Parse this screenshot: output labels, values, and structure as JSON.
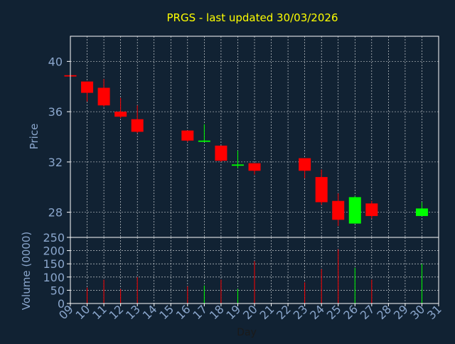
{
  "chart_data": [
    {
      "type": "candlestick",
      "title": "PRGS - last updated 30/03/2026",
      "ylabel": "Price",
      "ylim": [
        26.0,
        42.0
      ],
      "yticks": [
        28,
        32,
        36,
        40
      ],
      "grid": true,
      "x_ticks": [
        "09",
        "10",
        "11",
        "12",
        "13",
        "14",
        "15",
        "16",
        "17",
        "18",
        "19",
        "20",
        "21",
        "22",
        "23",
        "24",
        "25",
        "26",
        "27",
        "28",
        "29",
        "30",
        "31"
      ],
      "candles": [
        {
          "day": 9,
          "open": 38.9,
          "high": 38.9,
          "low": 38.8,
          "close": 38.8
        },
        {
          "day": 10,
          "open": 38.4,
          "high": 38.4,
          "low": 36.8,
          "close": 37.5
        },
        {
          "day": 11,
          "open": 37.9,
          "high": 38.6,
          "low": 36.4,
          "close": 36.5
        },
        {
          "day": 12,
          "open": 36.0,
          "high": 37.1,
          "low": 35.5,
          "close": 35.6
        },
        {
          "day": 13,
          "open": 35.4,
          "high": 36.5,
          "low": 34.3,
          "close": 34.4
        },
        {
          "day": 16,
          "open": 34.5,
          "high": 34.5,
          "low": 33.6,
          "close": 33.7
        },
        {
          "day": 17,
          "open": 33.6,
          "high": 35.0,
          "low": 33.6,
          "close": 33.7
        },
        {
          "day": 18,
          "open": 33.3,
          "high": 33.3,
          "low": 32.0,
          "close": 32.1
        },
        {
          "day": 19,
          "open": 31.7,
          "high": 32.9,
          "low": 31.5,
          "close": 31.8
        },
        {
          "day": 20,
          "open": 31.9,
          "high": 31.9,
          "low": 31.0,
          "close": 31.3
        },
        {
          "day": 23,
          "open": 32.3,
          "high": 32.3,
          "low": 30.7,
          "close": 31.3
        },
        {
          "day": 24,
          "open": 30.8,
          "high": 31.4,
          "low": 28.6,
          "close": 28.8
        },
        {
          "day": 25,
          "open": 28.9,
          "high": 29.5,
          "low": 26.9,
          "close": 27.4
        },
        {
          "day": 26,
          "open": 27.1,
          "high": 29.3,
          "low": 27.1,
          "close": 29.2
        },
        {
          "day": 27,
          "open": 28.7,
          "high": 28.9,
          "low": 27.5,
          "close": 27.7
        },
        {
          "day": 30,
          "open": 27.7,
          "high": 28.8,
          "low": 27.7,
          "close": 28.3
        }
      ]
    },
    {
      "type": "bar",
      "ylabel": "Volume (0000)",
      "xlabel": "Day",
      "ylim": [
        0,
        250
      ],
      "yticks": [
        0,
        50,
        100,
        150,
        200,
        250
      ],
      "grid": true,
      "volumes": [
        {
          "day": 9,
          "value": 0,
          "direction": "down"
        },
        {
          "day": 10,
          "value": 60,
          "direction": "down"
        },
        {
          "day": 11,
          "value": 90,
          "direction": "down"
        },
        {
          "day": 12,
          "value": 55,
          "direction": "down"
        },
        {
          "day": 13,
          "value": 100,
          "direction": "down"
        },
        {
          "day": 16,
          "value": 65,
          "direction": "down"
        },
        {
          "day": 17,
          "value": 68,
          "direction": "up"
        },
        {
          "day": 18,
          "value": 90,
          "direction": "down"
        },
        {
          "day": 19,
          "value": 55,
          "direction": "up"
        },
        {
          "day": 20,
          "value": 160,
          "direction": "down"
        },
        {
          "day": 23,
          "value": 80,
          "direction": "down"
        },
        {
          "day": 24,
          "value": 130,
          "direction": "down"
        },
        {
          "day": 25,
          "value": 205,
          "direction": "down"
        },
        {
          "day": 26,
          "value": 135,
          "direction": "up"
        },
        {
          "day": 27,
          "value": 90,
          "direction": "down"
        },
        {
          "day": 30,
          "value": 150,
          "direction": "up"
        }
      ]
    }
  ],
  "colors": {
    "background": "#112233",
    "plot_border": "#ffffff",
    "grid": "#ffffff",
    "axis_text": "#8aa6cc",
    "title": "#ffff00",
    "up": "#00ff00",
    "down": "#ff0000"
  }
}
